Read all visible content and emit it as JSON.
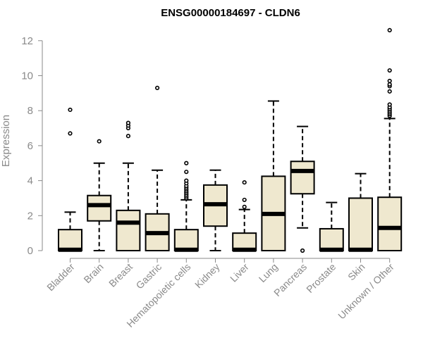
{
  "chart_data": {
    "type": "boxplot",
    "title": "ENSG00000184697 - CLDN6",
    "xlabel": "",
    "ylabel": "Expression",
    "ylim": [
      0,
      12.5
    ],
    "yticks": [
      0,
      2,
      4,
      6,
      8,
      10,
      12
    ],
    "grid": false,
    "colors": {
      "box_fill": "#efe8cf",
      "box_stroke": "#000000",
      "axis": "#8a8a8a"
    },
    "categories": [
      "Bladder",
      "Brain",
      "Breast",
      "Gastric",
      "Hematopoietic cells",
      "Kidney",
      "Liver",
      "Lung",
      "Pancreas",
      "Prostate",
      "Skin",
      "Unknown / Other"
    ],
    "boxes": [
      {
        "name": "Bladder",
        "whisker_low": 0,
        "q1": 0,
        "median": 0.05,
        "q3": 1.2,
        "whisker_high": 2.2,
        "outliers": [
          6.7,
          8.05
        ]
      },
      {
        "name": "Brain",
        "whisker_low": 0,
        "q1": 1.7,
        "median": 2.6,
        "q3": 3.15,
        "whisker_high": 5.0,
        "outliers": [
          6.25
        ]
      },
      {
        "name": "Breast",
        "whisker_low": 0,
        "q1": 0,
        "median": 1.6,
        "q3": 2.3,
        "whisker_high": 5.0,
        "outliers": [
          6.55,
          7.0,
          7.15,
          7.3
        ]
      },
      {
        "name": "Gastric",
        "whisker_low": 0,
        "q1": 0,
        "median": 1.0,
        "q3": 2.1,
        "whisker_high": 4.6,
        "outliers": [
          9.3
        ]
      },
      {
        "name": "Hematopoietic cells",
        "whisker_low": 0,
        "q1": 0,
        "median": 0.05,
        "q3": 1.2,
        "whisker_high": 2.9,
        "outliers": [
          3.0,
          3.1,
          3.2,
          3.3,
          3.4,
          3.5,
          3.6,
          3.7,
          3.85,
          4.0,
          4.5,
          5.0
        ]
      },
      {
        "name": "Kidney",
        "whisker_low": 0,
        "q1": 1.4,
        "median": 2.65,
        "q3": 3.75,
        "whisker_high": 4.6,
        "outliers": []
      },
      {
        "name": "Liver",
        "whisker_low": 0,
        "q1": 0,
        "median": 0.05,
        "q3": 1.0,
        "whisker_high": 2.35,
        "outliers": [
          2.5,
          2.9,
          3.9
        ]
      },
      {
        "name": "Lung",
        "whisker_low": 0,
        "q1": 0,
        "median": 2.1,
        "q3": 4.25,
        "whisker_high": 8.55,
        "outliers": []
      },
      {
        "name": "Pancreas",
        "whisker_low": 1.3,
        "q1": 3.25,
        "median": 4.55,
        "q3": 5.1,
        "whisker_high": 7.1,
        "outliers": [
          0
        ]
      },
      {
        "name": "Prostate",
        "whisker_low": 0,
        "q1": 0,
        "median": 0.05,
        "q3": 1.25,
        "whisker_high": 2.75,
        "outliers": []
      },
      {
        "name": "Skin",
        "whisker_low": 0,
        "q1": 0,
        "median": 0.05,
        "q3": 3.0,
        "whisker_high": 4.4,
        "outliers": []
      },
      {
        "name": "Unknown / Other",
        "whisker_low": 0,
        "q1": 0,
        "median": 1.3,
        "q3": 3.05,
        "whisker_high": 7.55,
        "outliers": [
          7.7,
          7.8,
          7.9,
          8.0,
          8.1,
          8.2,
          8.35,
          9.1,
          9.4,
          9.5,
          9.7,
          10.3,
          12.6
        ]
      }
    ]
  }
}
